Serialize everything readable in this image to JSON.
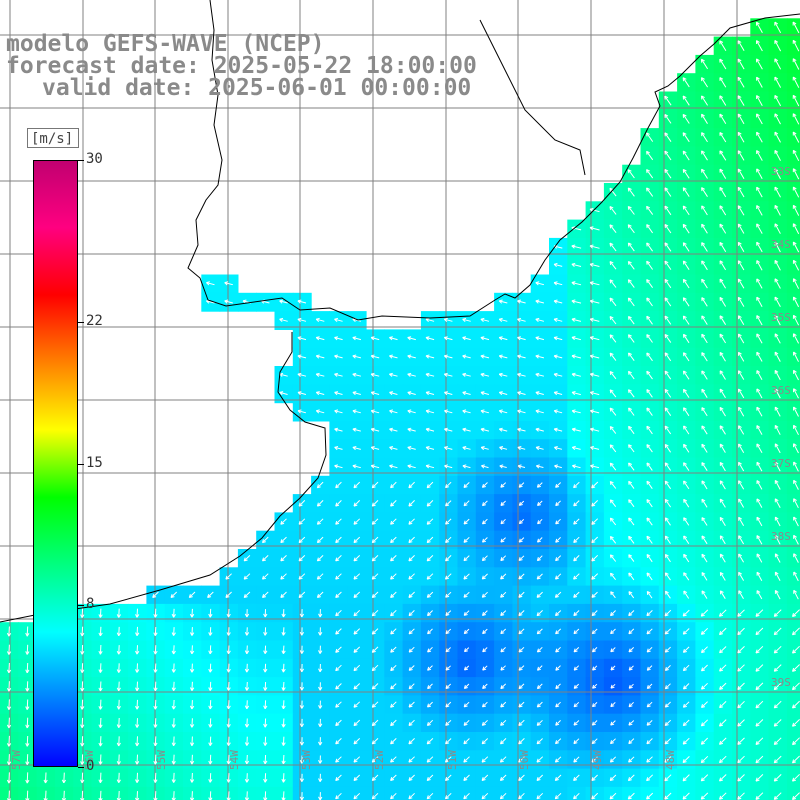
{
  "header": {
    "model_line": "modelo GEFS-WAVE (NCEP)",
    "forecast_line": "forecast date: 2025-05-22 18:00:00",
    "valid_line": "valid date: 2025-06-01 00:00:00"
  },
  "colorbar": {
    "units": "[m/s]",
    "ticks": [
      "30",
      "22",
      "15",
      "8",
      "0"
    ],
    "tick_values": [
      30,
      22,
      15,
      8,
      0
    ],
    "range": [
      0,
      30
    ],
    "colors": [
      "#0000ff",
      "#0080ff",
      "#00ffff",
      "#00ff80",
      "#00ff00",
      "#ffff00",
      "#ff8000",
      "#ff0000",
      "#ff0080",
      "#c00070"
    ]
  },
  "map": {
    "lon_labels": [
      "57W",
      "56W",
      "55W",
      "54W",
      "53W",
      "52W",
      "51W",
      "50W",
      "49W",
      "48W"
    ],
    "lat_labels": [
      "33S",
      "34S",
      "35S",
      "36S",
      "37S",
      "38S",
      "39S"
    ],
    "land_color": "#ffffff",
    "coast_color": "#000000",
    "grid_color": "#808080"
  }
}
